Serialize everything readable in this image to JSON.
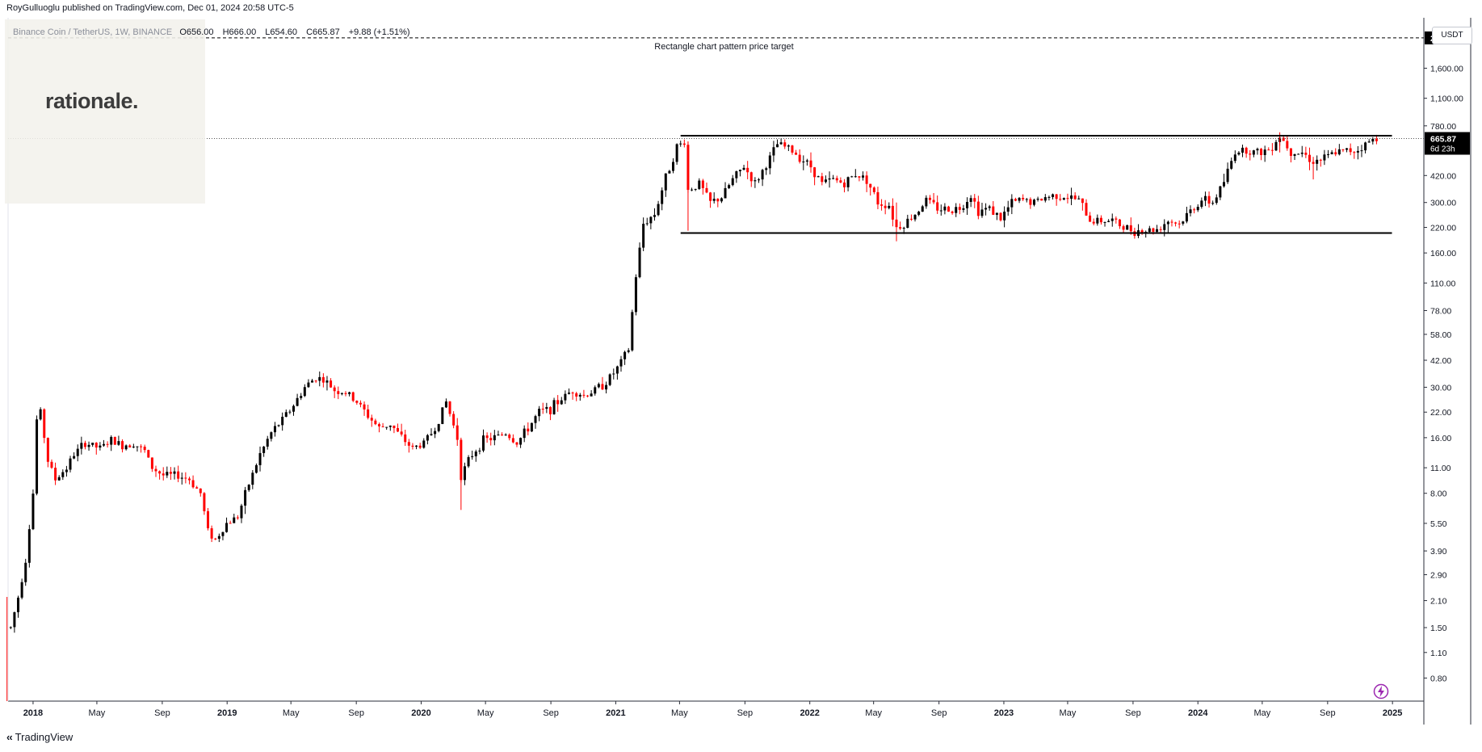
{
  "header": {
    "author": "RoyGulluoglu published on TradingView.com,",
    "timestamp": "Dec 01, 2024 20:58 UTC-5"
  },
  "symbol": {
    "name": "Binance Coin / TetherUS, 1W, BINANCE",
    "open": "O656.00",
    "high": "H666.00",
    "low": "L654.60",
    "close": "C665.87",
    "change": "+9.88 (+1.51%)"
  },
  "logo": {
    "text": "rationale."
  },
  "currency": "USDT",
  "footer": {
    "brand": "TradingView"
  },
  "colors": {
    "up": "#000000",
    "down": "#ff0000",
    "accent": "#9c27b0"
  },
  "chart_data": {
    "type": "candlestick",
    "title": "Binance Coin / TetherUS, 1W, BINANCE",
    "scale": "log",
    "ylim": [
      0.6,
      3000
    ],
    "xlim": [
      "2017-11-15",
      "2025-03-01"
    ],
    "x_tick_labels": [
      {
        "label": "2018",
        "date": "2018-01-01",
        "bold": true
      },
      {
        "label": "May",
        "date": "2018-05-01"
      },
      {
        "label": "Sep",
        "date": "2018-09-01"
      },
      {
        "label": "2019",
        "date": "2019-01-01",
        "bold": true
      },
      {
        "label": "May",
        "date": "2019-05-01"
      },
      {
        "label": "Sep",
        "date": "2019-09-01"
      },
      {
        "label": "2020",
        "date": "2020-01-01",
        "bold": true
      },
      {
        "label": "May",
        "date": "2020-05-01"
      },
      {
        "label": "Sep",
        "date": "2020-09-01"
      },
      {
        "label": "2021",
        "date": "2021-01-01",
        "bold": true
      },
      {
        "label": "May",
        "date": "2021-05-01"
      },
      {
        "label": "Sep",
        "date": "2021-09-01"
      },
      {
        "label": "2022",
        "date": "2022-01-01",
        "bold": true
      },
      {
        "label": "May",
        "date": "2022-05-01"
      },
      {
        "label": "Sep",
        "date": "2022-09-01"
      },
      {
        "label": "2023",
        "date": "2023-01-01",
        "bold": true
      },
      {
        "label": "May",
        "date": "2023-05-01"
      },
      {
        "label": "Sep",
        "date": "2023-09-01"
      },
      {
        "label": "2024",
        "date": "2024-01-01",
        "bold": true
      },
      {
        "label": "May",
        "date": "2024-05-01"
      },
      {
        "label": "Sep",
        "date": "2024-09-01"
      },
      {
        "label": "2025",
        "date": "2025-01-01",
        "bold": true
      }
    ],
    "y_tick_labels": [
      {
        "label": "1,600.00",
        "value": 1600
      },
      {
        "label": "1,100.00",
        "value": 1100
      },
      {
        "label": "780.00",
        "value": 780
      },
      {
        "label": "420.00",
        "value": 420
      },
      {
        "label": "300.00",
        "value": 300
      },
      {
        "label": "220.00",
        "value": 220
      },
      {
        "label": "160.00",
        "value": 160
      },
      {
        "label": "110.00",
        "value": 110
      },
      {
        "label": "78.00",
        "value": 78
      },
      {
        "label": "58.00",
        "value": 58
      },
      {
        "label": "42.00",
        "value": 42
      },
      {
        "label": "30.00",
        "value": 30
      },
      {
        "label": "22.00",
        "value": 22
      },
      {
        "label": "16.00",
        "value": 16
      },
      {
        "label": "11.00",
        "value": 11
      },
      {
        "label": "8.00",
        "value": 8
      },
      {
        "label": "5.50",
        "value": 5.5
      },
      {
        "label": "3.90",
        "value": 3.9
      },
      {
        "label": "2.90",
        "value": 2.9
      },
      {
        "label": "2.10",
        "value": 2.1
      },
      {
        "label": "1.50",
        "value": 1.5
      },
      {
        "label": "1.10",
        "value": 1.1
      },
      {
        "label": "0.80",
        "value": 0.8
      }
    ],
    "last_price": {
      "value": 665.87,
      "label": "665.87",
      "countdown": "6d 23h"
    },
    "target_line": {
      "value": 2334,
      "label": "2,334.00",
      "annotation": "Rectangle chart pattern price target"
    },
    "rectangle": {
      "top": 690,
      "bottom": 205,
      "start": "2021-05-03",
      "end": "2024-12-31"
    },
    "price_path": [
      [
        "2017-11-20",
        1.5
      ],
      [
        "2017-12-04",
        2.2
      ],
      [
        "2017-12-18",
        3.5
      ],
      [
        "2018-01-01",
        8.0
      ],
      [
        "2018-01-08",
        20.0
      ],
      [
        "2018-01-15",
        22.0
      ],
      [
        "2018-01-29",
        12.0
      ],
      [
        "2018-02-12",
        9.5
      ],
      [
        "2018-03-05",
        11.0
      ],
      [
        "2018-03-19",
        13.0
      ],
      [
        "2018-04-09",
        15.0
      ],
      [
        "2018-05-07",
        14.0
      ],
      [
        "2018-05-28",
        15.5
      ],
      [
        "2018-06-18",
        14.5
      ],
      [
        "2018-07-09",
        15.0
      ],
      [
        "2018-07-30",
        13.5
      ],
      [
        "2018-08-13",
        11.0
      ],
      [
        "2018-09-03",
        10.0
      ],
      [
        "2018-10-01",
        10.0
      ],
      [
        "2018-10-22",
        9.5
      ],
      [
        "2018-11-12",
        8.0
      ],
      [
        "2018-11-26",
        5.0
      ],
      [
        "2018-12-10",
        4.5
      ],
      [
        "2018-12-31",
        5.5
      ],
      [
        "2019-01-21",
        6.0
      ],
      [
        "2019-02-11",
        9.0
      ],
      [
        "2019-03-04",
        13.0
      ],
      [
        "2019-03-25",
        17.0
      ],
      [
        "2019-04-15",
        20.0
      ],
      [
        "2019-05-06",
        24.0
      ],
      [
        "2019-05-27",
        30.0
      ],
      [
        "2019-06-17",
        34.0
      ],
      [
        "2019-07-01",
        33.0
      ],
      [
        "2019-07-22",
        29.0
      ],
      [
        "2019-08-12",
        28.0
      ],
      [
        "2019-09-02",
        25.0
      ],
      [
        "2019-09-23",
        21.0
      ],
      [
        "2019-10-14",
        18.0
      ],
      [
        "2019-11-04",
        19.0
      ],
      [
        "2019-11-25",
        16.0
      ],
      [
        "2019-12-16",
        14.0
      ],
      [
        "2020-01-06",
        15.0
      ],
      [
        "2020-01-27",
        18.0
      ],
      [
        "2020-02-17",
        25.0
      ],
      [
        "2020-03-09",
        16.0
      ],
      [
        "2020-03-16",
        10.0
      ],
      [
        "2020-04-06",
        13.0
      ],
      [
        "2020-04-27",
        15.5
      ],
      [
        "2020-05-18",
        16.0
      ],
      [
        "2020-06-08",
        17.0
      ],
      [
        "2020-06-29",
        15.0
      ],
      [
        "2020-07-20",
        18.0
      ],
      [
        "2020-08-10",
        22.0
      ],
      [
        "2020-08-31",
        23.0
      ],
      [
        "2020-09-21",
        26.0
      ],
      [
        "2020-10-12",
        29.0
      ],
      [
        "2020-11-02",
        27.0
      ],
      [
        "2020-11-23",
        29.0
      ],
      [
        "2020-12-14",
        32.0
      ],
      [
        "2021-01-04",
        38.0
      ],
      [
        "2021-01-25",
        48.0
      ],
      [
        "2021-02-08",
        120.0
      ],
      [
        "2021-02-22",
        230.0
      ],
      [
        "2021-03-15",
        260.0
      ],
      [
        "2021-04-05",
        410.0
      ],
      [
        "2021-04-26",
        600.0
      ],
      [
        "2021-05-10",
        640.0
      ],
      [
        "2021-05-17",
        350.0
      ],
      [
        "2021-06-07",
        380.0
      ],
      [
        "2021-06-28",
        300.0
      ],
      [
        "2021-07-19",
        320.0
      ],
      [
        "2021-08-09",
        400.0
      ],
      [
        "2021-08-30",
        470.0
      ],
      [
        "2021-09-20",
        380.0
      ],
      [
        "2021-10-11",
        480.0
      ],
      [
        "2021-11-01",
        620.0
      ],
      [
        "2021-11-22",
        590.0
      ],
      [
        "2021-12-13",
        530.0
      ],
      [
        "2022-01-03",
        470.0
      ],
      [
        "2022-01-24",
        380.0
      ],
      [
        "2022-02-14",
        400.0
      ],
      [
        "2022-03-07",
        380.0
      ],
      [
        "2022-03-28",
        430.0
      ],
      [
        "2022-04-18",
        400.0
      ],
      [
        "2022-05-09",
        300.0
      ],
      [
        "2022-05-30",
        290.0
      ],
      [
        "2022-06-13",
        220.0
      ],
      [
        "2022-06-27",
        230.0
      ],
      [
        "2022-07-18",
        260.0
      ],
      [
        "2022-08-08",
        310.0
      ],
      [
        "2022-08-29",
        280.0
      ],
      [
        "2022-09-19",
        275.0
      ],
      [
        "2022-10-10",
        280.0
      ],
      [
        "2022-10-31",
        330.0
      ],
      [
        "2022-11-14",
        270.0
      ],
      [
        "2022-12-05",
        280.0
      ],
      [
        "2022-12-26",
        245.0
      ],
      [
        "2023-01-16",
        300.0
      ],
      [
        "2023-02-06",
        310.0
      ],
      [
        "2023-02-27",
        300.0
      ],
      [
        "2023-03-20",
        320.0
      ],
      [
        "2023-04-10",
        330.0
      ],
      [
        "2023-05-01",
        320.0
      ],
      [
        "2023-05-22",
        310.0
      ],
      [
        "2023-06-12",
        240.0
      ],
      [
        "2023-07-03",
        240.0
      ],
      [
        "2023-07-24",
        240.0
      ],
      [
        "2023-08-14",
        220.0
      ],
      [
        "2023-09-04",
        212.0
      ],
      [
        "2023-09-25",
        212.0
      ],
      [
        "2023-10-16",
        215.0
      ],
      [
        "2023-11-06",
        240.0
      ],
      [
        "2023-11-27",
        230.0
      ],
      [
        "2023-12-18",
        270.0
      ],
      [
        "2024-01-08",
        310.0
      ],
      [
        "2024-01-29",
        300.0
      ],
      [
        "2024-02-19",
        390.0
      ],
      [
        "2024-03-11",
        570.0
      ],
      [
        "2024-04-01",
        580.0
      ],
      [
        "2024-04-22",
        560.0
      ],
      [
        "2024-05-13",
        580.0
      ],
      [
        "2024-06-03",
        690.0
      ],
      [
        "2024-06-24",
        570.0
      ],
      [
        "2024-07-15",
        560.0
      ],
      [
        "2024-08-05",
        500.0
      ],
      [
        "2024-08-26",
        520.0
      ],
      [
        "2024-09-16",
        560.0
      ],
      [
        "2024-10-07",
        570.0
      ],
      [
        "2024-10-28",
        580.0
      ],
      [
        "2024-11-18",
        640.0
      ],
      [
        "2024-12-02",
        665.87
      ]
    ],
    "wick_spikes": [
      {
        "date": "2017-11-13",
        "low": 0.6,
        "high": 2.2
      },
      {
        "date": "2020-03-16",
        "low": 6.5,
        "high": 16.0
      },
      {
        "date": "2021-05-17",
        "low": 211.0,
        "high": 640.0
      },
      {
        "date": "2022-06-13",
        "low": 185.0,
        "high": 300.0
      },
      {
        "date": "2024-06-03",
        "low": 560.0,
        "high": 720.0
      },
      {
        "date": "2024-08-05",
        "low": 400.0,
        "high": 530.0
      }
    ]
  }
}
